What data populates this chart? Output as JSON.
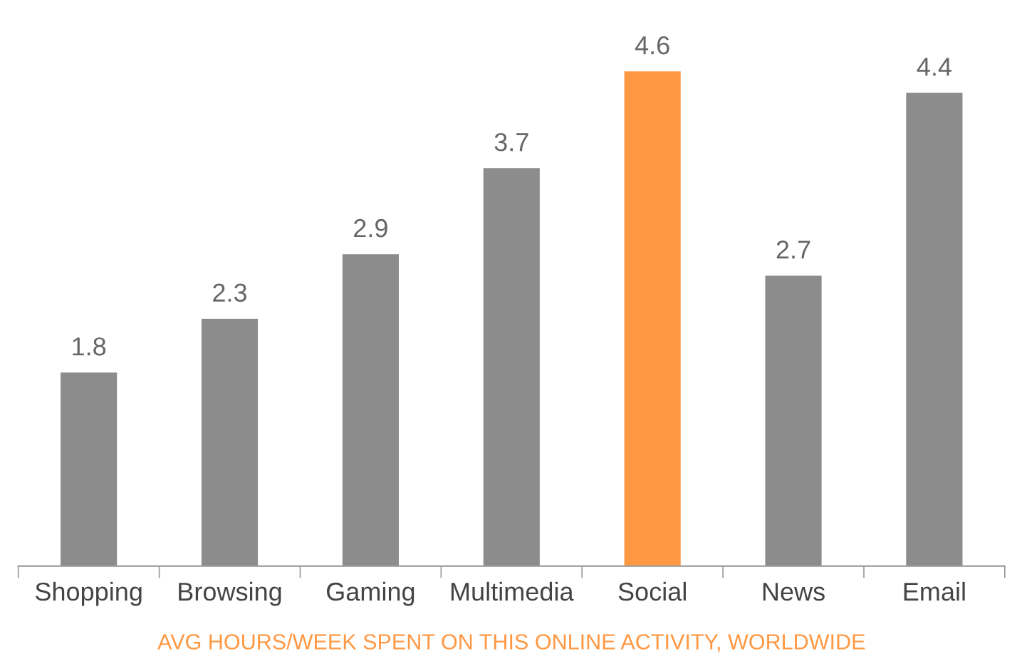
{
  "chart_data": {
    "type": "bar",
    "categories": [
      "Shopping",
      "Browsing",
      "Gaming",
      "Multimedia",
      "Social",
      "News",
      "Email"
    ],
    "values": [
      1.8,
      2.3,
      2.9,
      3.7,
      4.6,
      2.7,
      4.4
    ],
    "colors": [
      "#8c8c8c",
      "#8c8c8c",
      "#8c8c8c",
      "#8c8c8c",
      "#ff9843",
      "#8c8c8c",
      "#8c8c8c"
    ],
    "data_labels": true,
    "xlabel": "AVG HOURS/WEEK SPENT ON THIS ONLINE ACTIVITY, WORLDWIDE",
    "grid": false,
    "legend": false
  }
}
